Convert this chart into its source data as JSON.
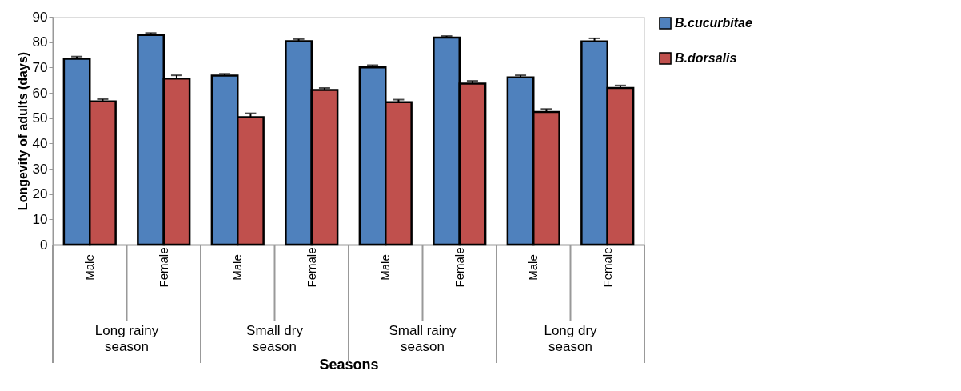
{
  "chart_data": {
    "type": "bar",
    "xlabel": "Seasons",
    "ylabel": "Longevity of adults (days)",
    "categories": [
      "Male",
      "Female",
      "Male",
      "Female",
      "Male",
      "Female",
      "Male",
      "Female"
    ],
    "series": [
      {
        "name": "B.cucurbitae",
        "color": "#4f81bd",
        "values": [
          73.4,
          82.8,
          66.8,
          80.4,
          70.0,
          81.8,
          66.1,
          80.3
        ],
        "errors": [
          0.9,
          0.8,
          0.7,
          0.8,
          0.9,
          0.6,
          0.8,
          1.2
        ]
      },
      {
        "name": "B.dorsalis",
        "color": "#c0504d",
        "values": [
          56.6,
          65.6,
          50.4,
          61.1,
          56.3,
          63.6,
          52.4,
          61.9
        ],
        "errors": [
          0.9,
          1.3,
          1.5,
          0.8,
          1.0,
          1.1,
          1.2,
          1.0
        ]
      }
    ],
    "annotations": [
      "Long rainy season",
      "Small dry season",
      "Small rainy season",
      "Long dry season"
    ],
    "ylim": [
      0,
      90
    ],
    "yticks": [
      0,
      10,
      20,
      30,
      40,
      50,
      60,
      70,
      80,
      90
    ],
    "grid": false,
    "legend": "right"
  }
}
